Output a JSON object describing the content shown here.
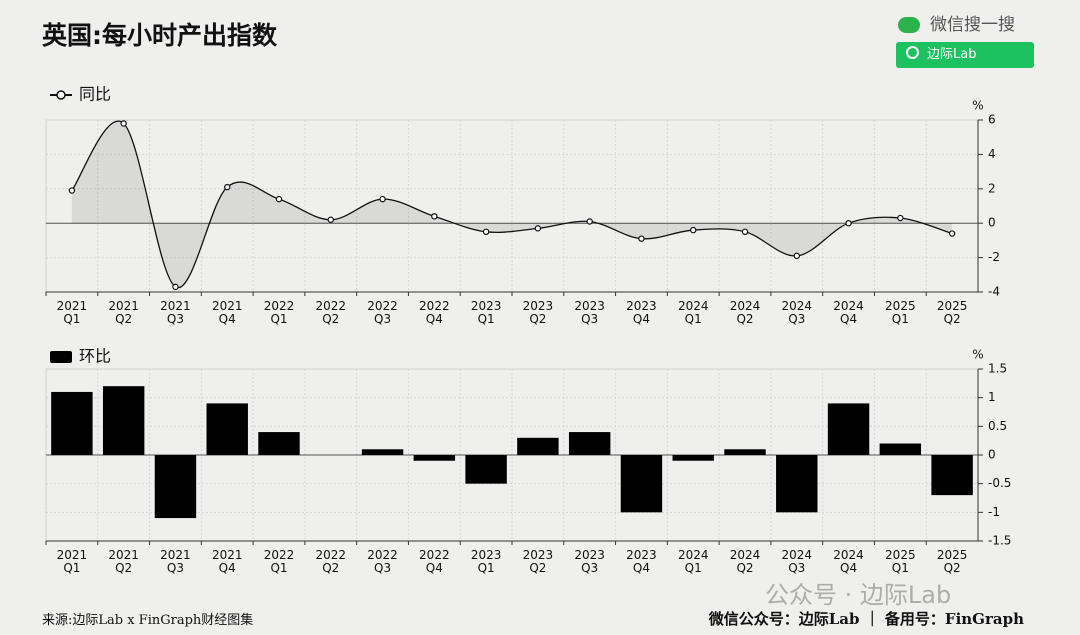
{
  "header": {
    "title": "英国:每小时产出指数",
    "search_label": "微信搜一搜",
    "search_button": "边际Lab"
  },
  "footer": {
    "source": "来源:边际Lab x FinGraph财经图集",
    "credit": "微信公众号：边际Lab ｜ 备用号：FinGraph"
  },
  "watermark": "公众号 · 边际Lab",
  "chart_data": [
    {
      "type": "line",
      "unit": "%",
      "grid": true,
      "categories": [
        [
          "2021",
          "Q1"
        ],
        [
          "2021",
          "Q2"
        ],
        [
          "2021",
          "Q3"
        ],
        [
          "2021",
          "Q4"
        ],
        [
          "2022",
          "Q1"
        ],
        [
          "2022",
          "Q2"
        ],
        [
          "2022",
          "Q3"
        ],
        [
          "2022",
          "Q4"
        ],
        [
          "2023",
          "Q1"
        ],
        [
          "2023",
          "Q2"
        ],
        [
          "2023",
          "Q3"
        ],
        [
          "2023",
          "Q4"
        ],
        [
          "2024",
          "Q1"
        ],
        [
          "2024",
          "Q2"
        ],
        [
          "2024",
          "Q3"
        ],
        [
          "2024",
          "Q4"
        ],
        [
          "2025",
          "Q1"
        ],
        [
          "2025",
          "Q2"
        ]
      ],
      "series": [
        {
          "name": "同比",
          "color": "#111111",
          "values": [
            1.9,
            5.8,
            -3.7,
            2.1,
            1.4,
            0.2,
            1.4,
            0.4,
            -0.5,
            -0.3,
            0.1,
            -0.9,
            -0.4,
            -0.5,
            -1.9,
            0.0,
            0.3,
            -0.6
          ]
        }
      ],
      "ylim": [
        -4,
        6
      ],
      "yticks": [
        -4,
        -2,
        0,
        2,
        4,
        6
      ]
    },
    {
      "type": "bar",
      "unit": "%",
      "grid": true,
      "categories": [
        [
          "2021",
          "Q1"
        ],
        [
          "2021",
          "Q2"
        ],
        [
          "2021",
          "Q3"
        ],
        [
          "2021",
          "Q4"
        ],
        [
          "2022",
          "Q1"
        ],
        [
          "2022",
          "Q2"
        ],
        [
          "2022",
          "Q3"
        ],
        [
          "2022",
          "Q4"
        ],
        [
          "2023",
          "Q1"
        ],
        [
          "2023",
          "Q2"
        ],
        [
          "2023",
          "Q3"
        ],
        [
          "2023",
          "Q4"
        ],
        [
          "2024",
          "Q1"
        ],
        [
          "2024",
          "Q2"
        ],
        [
          "2024",
          "Q3"
        ],
        [
          "2024",
          "Q4"
        ],
        [
          "2025",
          "Q1"
        ],
        [
          "2025",
          "Q2"
        ]
      ],
      "series": [
        {
          "name": "环比",
          "color": "#000000",
          "values": [
            1.1,
            1.2,
            -1.1,
            0.9,
            0.4,
            0.0,
            0.1,
            -0.1,
            -0.5,
            0.3,
            0.4,
            -1.0,
            -0.1,
            0.1,
            -1.0,
            0.9,
            0.2,
            -0.7
          ]
        }
      ],
      "ylim": [
        -1.5,
        1.5
      ],
      "yticks": [
        -1.5,
        -1,
        -0.5,
        0,
        0.5,
        1,
        1.5
      ]
    }
  ]
}
